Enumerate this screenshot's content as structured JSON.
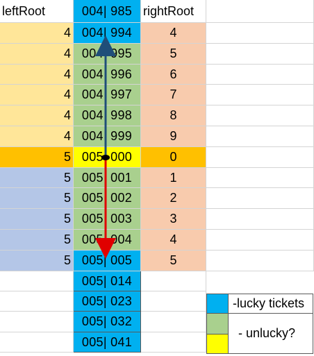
{
  "headers": {
    "left": "leftRoot",
    "mid": "004| 985",
    "right": "rightRoot"
  },
  "rows": [
    {
      "left": "4",
      "mid": "004| 994",
      "right": "4"
    },
    {
      "left": "4",
      "mid": "004| 995",
      "right": "5"
    },
    {
      "left": "4",
      "mid": "004| 996",
      "right": "6"
    },
    {
      "left": "4",
      "mid": "004| 997",
      "right": "7"
    },
    {
      "left": "4",
      "mid": "004| 998",
      "right": "8"
    },
    {
      "left": "4",
      "mid": "004| 999",
      "right": "9"
    },
    {
      "left": "5",
      "mid": "005| 000",
      "right": "0"
    },
    {
      "left": "5",
      "mid": "005| 001",
      "right": "1"
    },
    {
      "left": "5",
      "mid": "005| 002",
      "right": "2"
    },
    {
      "left": "5",
      "mid": "005| 003",
      "right": "3"
    },
    {
      "left": "5",
      "mid": "005| 004",
      "right": "4"
    },
    {
      "left": "5",
      "mid": "005| 005",
      "right": "5"
    }
  ],
  "extra_rows": [
    {
      "mid": "005| 014"
    },
    {
      "mid": "005| 023"
    },
    {
      "mid": "005| 032"
    },
    {
      "mid": "005| 041"
    }
  ],
  "legend": {
    "lucky_label": "-lucky tickets",
    "unlucky_label": "- unlucky?"
  },
  "colors": {
    "lucky_blue": "#00b0f0",
    "unlucky_green": "#a9d08e",
    "unlucky_yellow": "#ffff00",
    "left_yellow": "#ffe699",
    "left_blue": "#b4c6e7",
    "right_salmon": "#f8cbad",
    "highlight_orange": "#ffc000",
    "arrow_up": "#1f4e79",
    "arrow_down": "#e00000"
  },
  "icons": {
    "up_arrow": "arrow-up-icon",
    "down_arrow": "arrow-down-icon"
  }
}
